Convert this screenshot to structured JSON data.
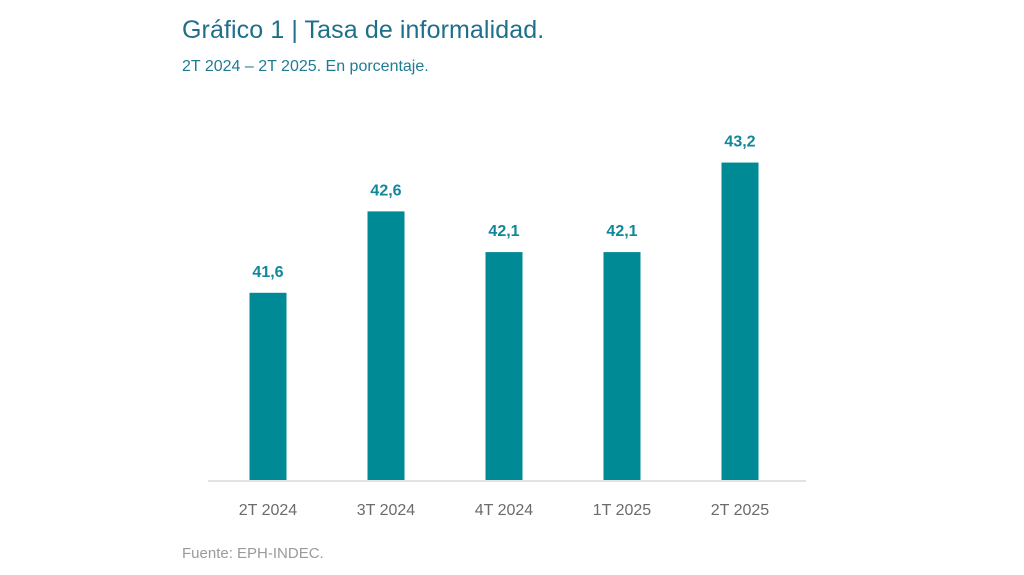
{
  "chart_data": {
    "type": "bar",
    "title": "Gráfico 1 | Tasa de informalidad.",
    "subtitle": "2T 2024 – 2T 2025. En porcentaje.",
    "source": "Fuente: EPH-INDEC.",
    "xlabel": "",
    "ylabel": "",
    "categories": [
      "2T 2024",
      "3T 2024",
      "4T 2024",
      "1T 2025",
      "2T 2025"
    ],
    "values": [
      41.6,
      42.6,
      42.1,
      42.1,
      43.2
    ],
    "value_labels": [
      "41,6",
      "42,6",
      "42,1",
      "42,1",
      "43,2"
    ],
    "ylim": [
      39.3,
      43.6
    ],
    "grid": false,
    "legend": "none",
    "colors": {
      "bar": "#008a96",
      "value_label": "#10879a",
      "title": "#1f6f8a",
      "axis": "#d9d9d9"
    }
  }
}
